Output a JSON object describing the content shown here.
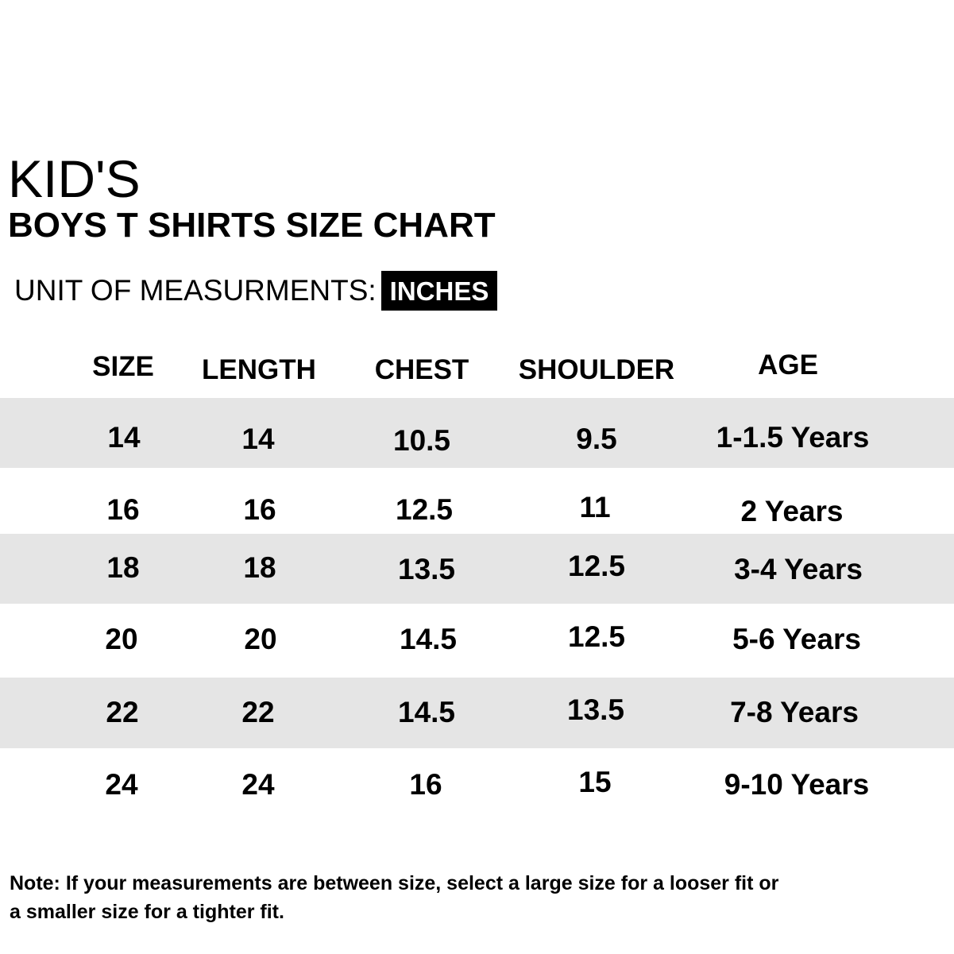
{
  "title": "KID'S",
  "subtitle": "BOYS T SHIRTS SIZE CHART",
  "unit": {
    "label": "UNIT OF MEASURMENTS:",
    "value": "INCHES"
  },
  "headers": [
    "SIZE",
    "LENGTH",
    "CHEST",
    "SHOULDER",
    "AGE"
  ],
  "rows": [
    [
      "14",
      "14",
      "10.5",
      "9.5",
      "1-1.5 Years"
    ],
    [
      "16",
      "16",
      "12.5",
      "11",
      "2 Years"
    ],
    [
      "18",
      "18",
      "13.5",
      "12.5",
      "3-4 Years"
    ],
    [
      "20",
      "20",
      "14.5",
      "12.5",
      "5-6 Years"
    ],
    [
      "22",
      "22",
      "14.5",
      "13.5",
      "7-8 Years"
    ],
    [
      "24",
      "24",
      "16",
      "15",
      "9-10 Years"
    ]
  ],
  "note": {
    "line1": "Note: If your measurements are between size, select a large size for a looser fit or",
    "line2": "a smaller size for a tighter fit."
  },
  "colors": {
    "shaded_row": "#e5e5e5",
    "badge_bg": "#000000",
    "badge_text": "#ffffff"
  }
}
